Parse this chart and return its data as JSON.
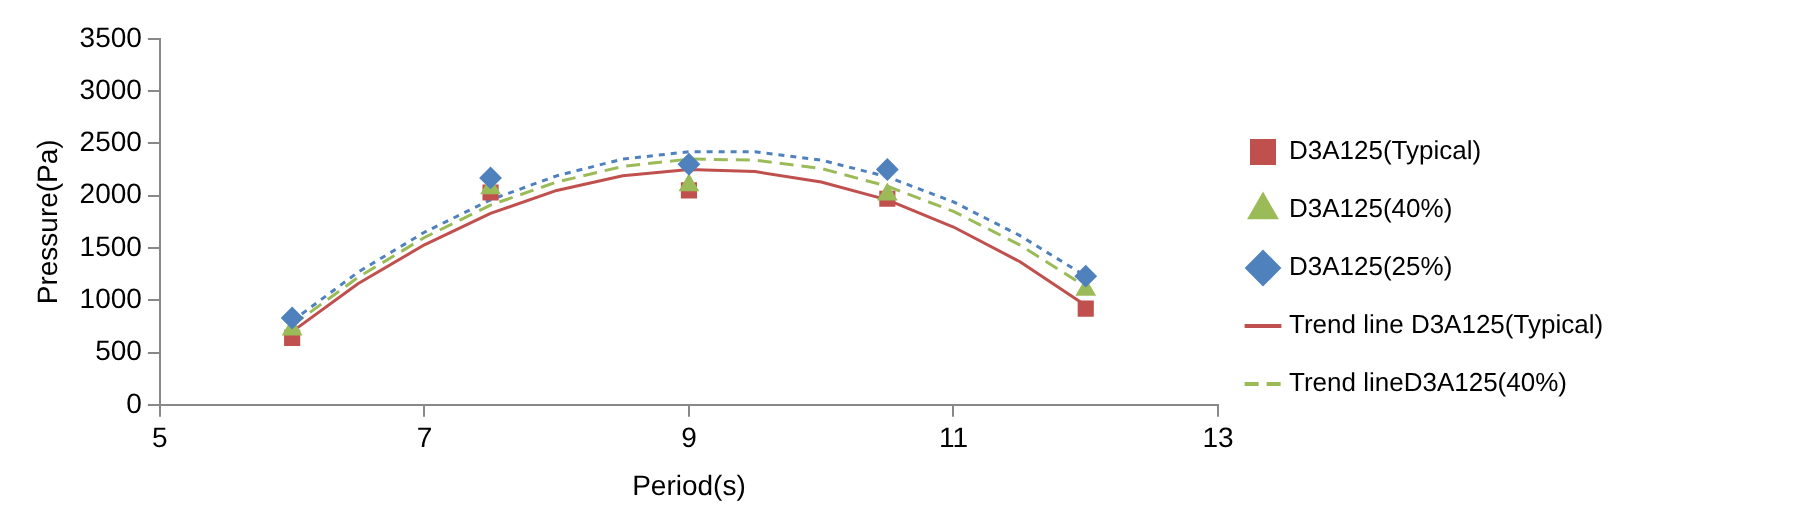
{
  "chart_data": {
    "type": "scatter",
    "xlabel": "Period(s)",
    "ylabel": "Pressure(Pa)",
    "xlim": [
      5,
      13
    ],
    "xticks": [
      5,
      7,
      9,
      11,
      13
    ],
    "ylim": [
      0,
      3500
    ],
    "yticks": [
      0,
      500,
      1000,
      1500,
      2000,
      2500,
      3000,
      3500
    ],
    "grid": false,
    "legend": "right",
    "series": [
      {
        "name": "D3A125(Typical)",
        "color": "#c0504d",
        "marker": "square",
        "x": [
          6,
          7.5,
          9,
          10.5,
          12
        ],
        "values": [
          640,
          2030,
          2050,
          1970,
          920
        ]
      },
      {
        "name": "D3A125(40%)",
        "color": "#9bbb59",
        "marker": "triangle",
        "x": [
          6,
          7.5,
          9,
          10.5,
          12
        ],
        "values": [
          720,
          2070,
          2100,
          2010,
          1100
        ]
      },
      {
        "name": "D3A125(25%)",
        "color": "#4f81bd",
        "marker": "diamond",
        "x": [
          6,
          7.5,
          9,
          10.5,
          12
        ],
        "values": [
          830,
          2170,
          2300,
          2250,
          1230
        ]
      },
      {
        "name": "Trend line D3A125(Typical)",
        "type": "line",
        "color": "#c0504d",
        "line_style": "solid",
        "marker": "none",
        "x": [
          6,
          6.5,
          7,
          7.5,
          8,
          8.5,
          9,
          9.5,
          10,
          10.5,
          11,
          11.5,
          12
        ],
        "values": [
          700,
          1160,
          1530,
          1830,
          2050,
          2190,
          2250,
          2230,
          2130,
          1960,
          1700,
          1370,
          950
        ]
      },
      {
        "name": "Trend lineD3A125(40%)",
        "type": "line",
        "color": "#9bbb59",
        "line_style": "dashed",
        "marker": "none",
        "x": [
          6,
          6.5,
          7,
          7.5,
          8,
          8.5,
          9,
          9.5,
          10,
          10.5,
          11,
          11.5,
          12
        ],
        "values": [
          760,
          1220,
          1600,
          1910,
          2130,
          2280,
          2350,
          2340,
          2260,
          2090,
          1850,
          1530,
          1130
        ]
      },
      {
        "type": "line",
        "color": "#4f81bd",
        "line_style": "dotted",
        "marker": "none",
        "x": [
          6,
          6.5,
          7,
          7.5,
          8,
          8.5,
          9,
          9.5,
          10,
          10.5,
          11,
          11.5,
          12
        ],
        "values": [
          800,
          1270,
          1650,
          1960,
          2190,
          2350,
          2420,
          2420,
          2340,
          2180,
          1940,
          1620,
          1230
        ]
      }
    ]
  }
}
